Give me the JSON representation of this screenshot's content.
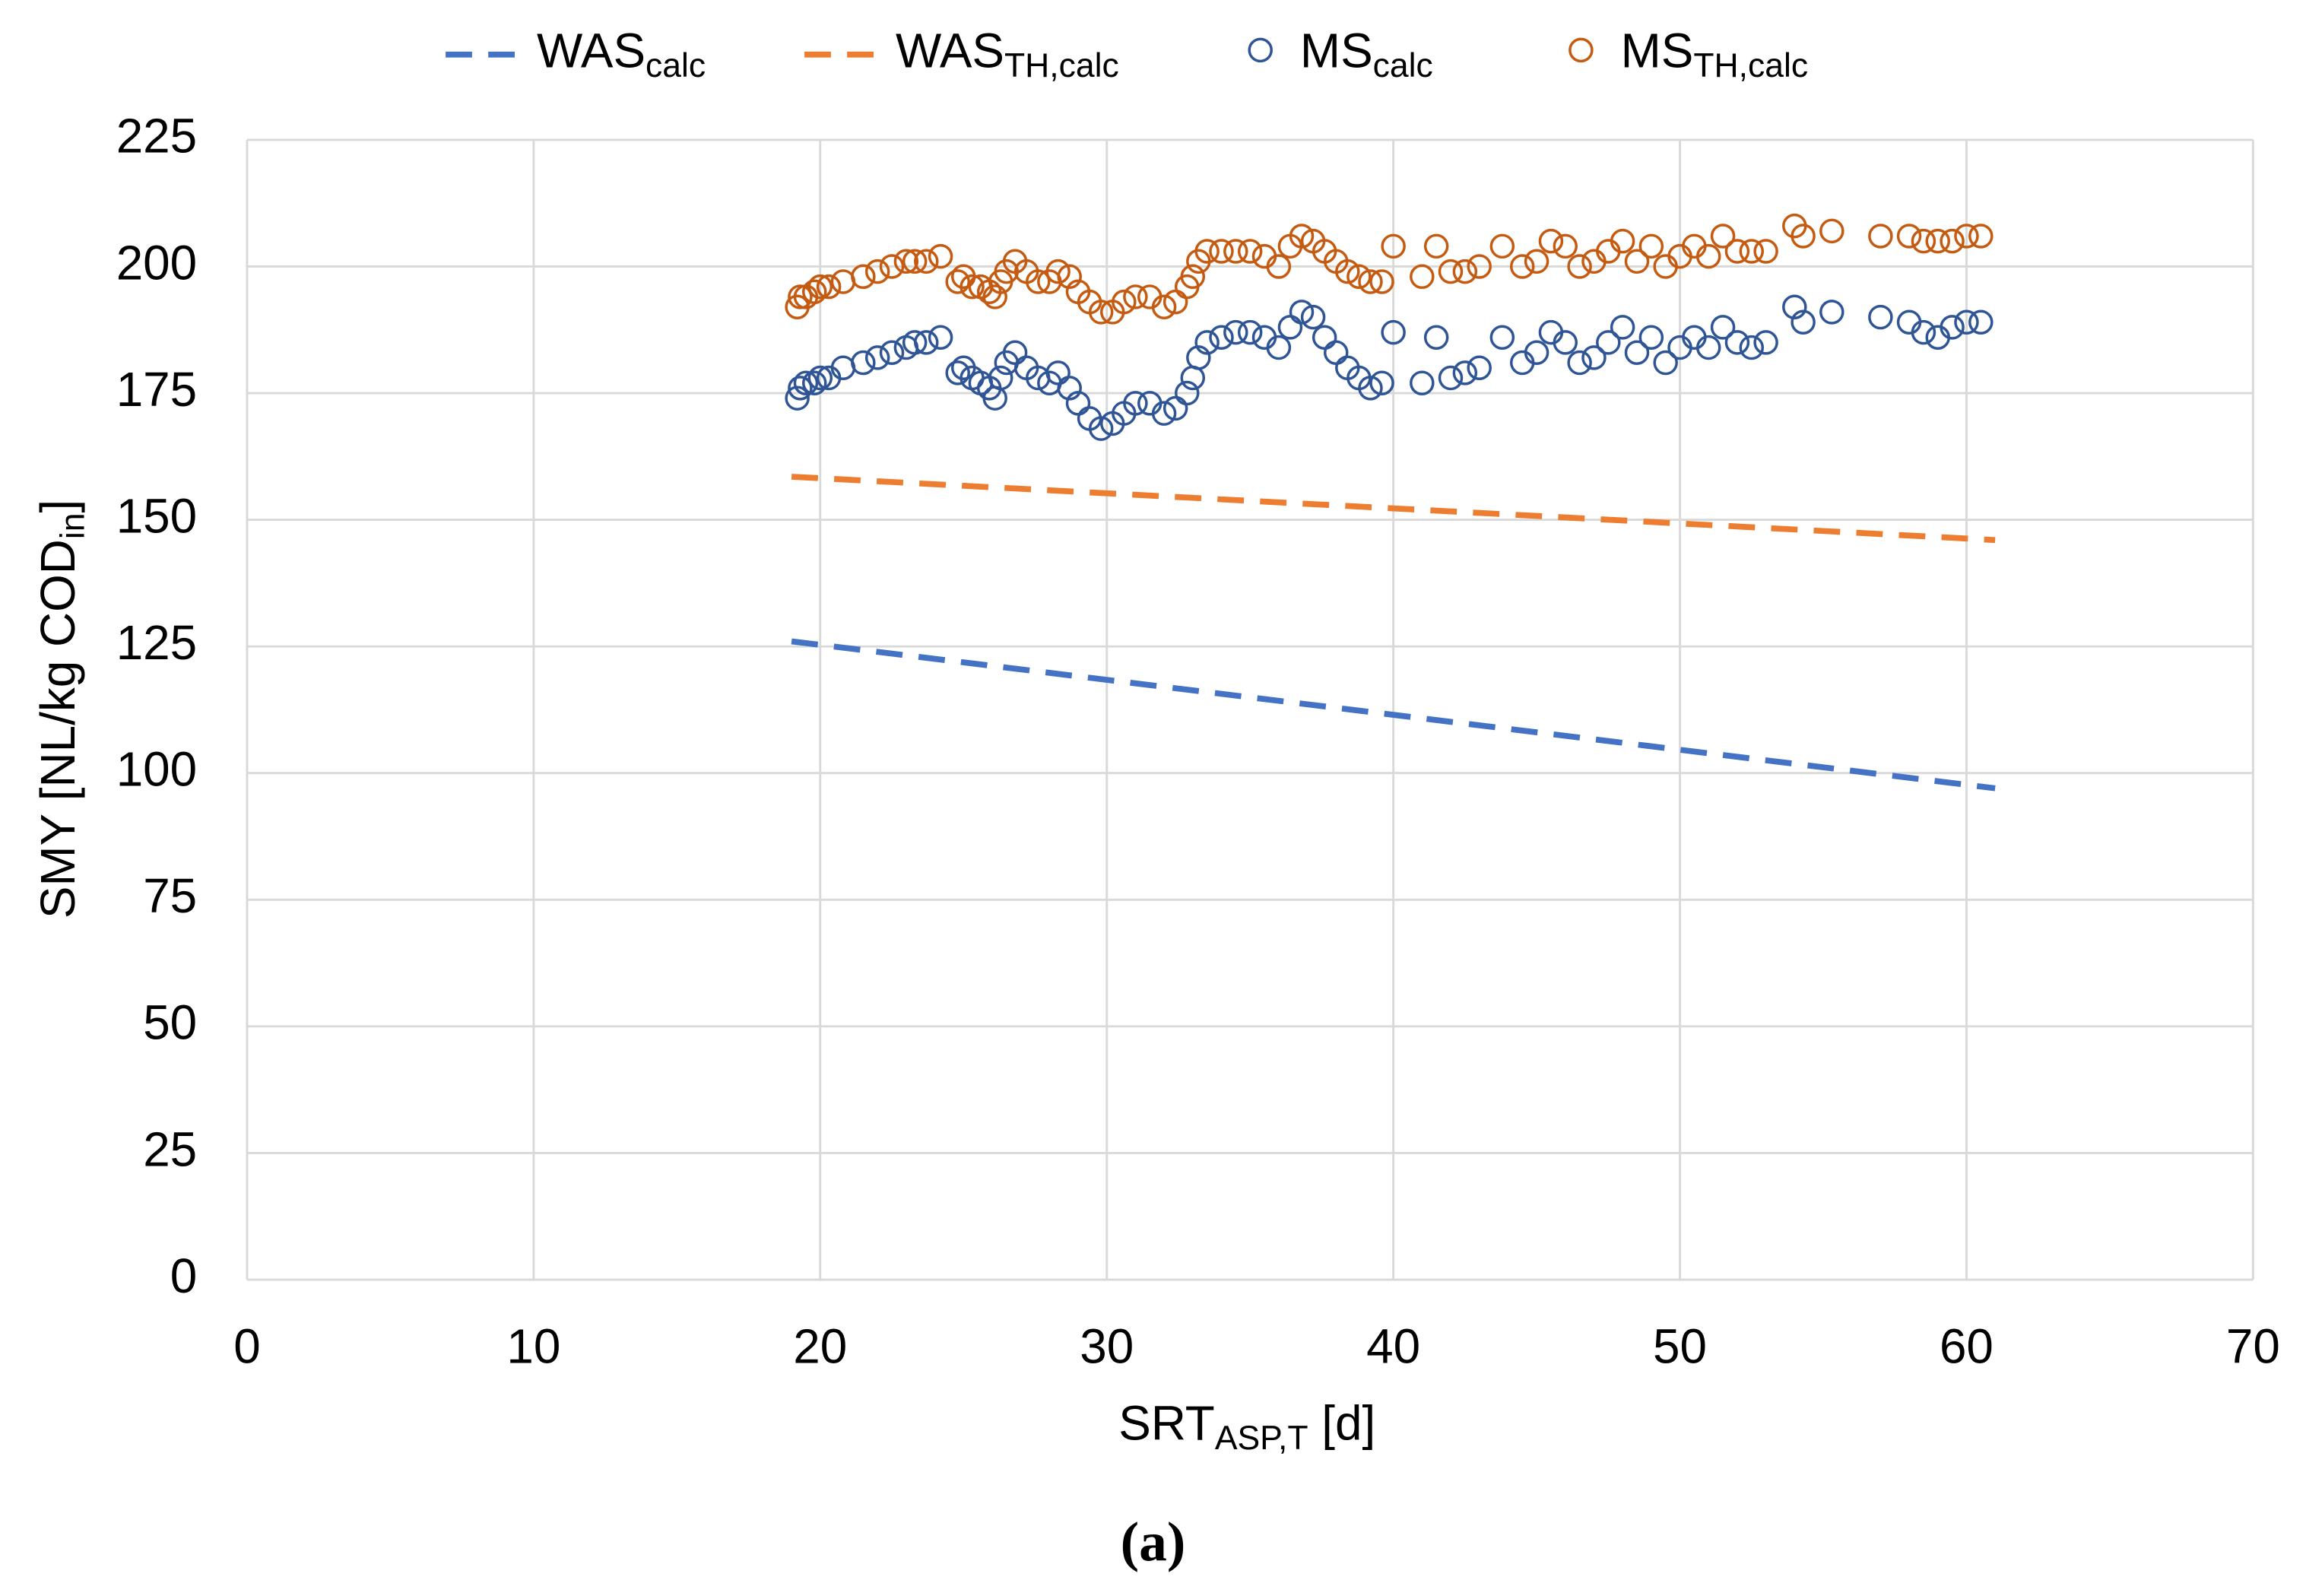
{
  "chart_data": {
    "type": "scatter",
    "x_label": "SRT",
    "x_label_sub": "ASP,T",
    "x_label_suffix": " [d]",
    "y_label": "SMY [NL/kg COD",
    "y_label_sub": "in",
    "y_label_suffix": "]",
    "caption": "(a)",
    "xlim": [
      0,
      70
    ],
    "xticks": [
      0,
      10,
      20,
      30,
      40,
      50,
      60,
      70
    ],
    "ylim": [
      0,
      225
    ],
    "yticks": [
      0,
      25,
      50,
      75,
      100,
      125,
      150,
      175,
      200,
      225
    ],
    "grid": true,
    "legend": "top",
    "series": [
      {
        "name": "WAS",
        "subscript": "calc",
        "style": "dashed-line",
        "color": "#4472c4",
        "x": [
          19,
          61
        ],
        "values": [
          126,
          97
        ]
      },
      {
        "name": "WAS",
        "subscript": "TH,calc",
        "style": "dashed-line",
        "color": "#ed7d31",
        "x": [
          19,
          61
        ],
        "values": [
          158.5,
          146
        ]
      },
      {
        "name": "MS",
        "subscript": "calc",
        "style": "open-circle",
        "color": "#2f5597",
        "x": [
          19.2,
          19.3,
          19.5,
          19.8,
          20.0,
          20.3,
          20.8,
          21.5,
          22,
          22.5,
          23,
          23.3,
          23.7,
          24.2,
          24.8,
          25.0,
          25.3,
          25.6,
          25.9,
          26.1,
          26.3,
          26.5,
          26.8,
          27.2,
          27.6,
          28.0,
          28.3,
          28.7,
          29.0,
          29.4,
          29.8,
          30.2,
          30.6,
          31.0,
          31.5,
          32.0,
          32.4,
          32.8,
          33.0,
          33.2,
          33.5,
          34.0,
          34.5,
          35.0,
          35.5,
          36.0,
          36.4,
          36.8,
          37.2,
          37.6,
          38.0,
          38.4,
          38.8,
          39.2,
          39.6,
          40.0,
          41.0,
          41.5,
          42,
          42.5,
          43,
          43.8,
          44.5,
          45.0,
          45.5,
          46.0,
          46.5,
          47.0,
          47.5,
          48.0,
          48.5,
          49.0,
          49.5,
          50.0,
          50.5,
          51.0,
          51.5,
          52.0,
          52.5,
          53.0,
          54.0,
          54.3,
          55.3,
          57.0,
          58.0,
          58.5,
          59.0,
          59.5,
          60.0,
          60.5
        ],
        "values": [
          174,
          176,
          177,
          177,
          178,
          178,
          180,
          181,
          182,
          183,
          184,
          185,
          185,
          186,
          179,
          180,
          178,
          177,
          176,
          174,
          178,
          181,
          183,
          180,
          178,
          177,
          179,
          176,
          173,
          170,
          168,
          169,
          171,
          173,
          173,
          171,
          172,
          175,
          178,
          182,
          185,
          186,
          187,
          187,
          186,
          184,
          188,
          191,
          190,
          186,
          183,
          180,
          178,
          176,
          177,
          187,
          177,
          186,
          178,
          179,
          180,
          186,
          181,
          183,
          187,
          185,
          181,
          182,
          185,
          188,
          183,
          186,
          181,
          184,
          186,
          184,
          188,
          185,
          184,
          185,
          192,
          189,
          191,
          190,
          189,
          187,
          186,
          188,
          189,
          189
        ]
      },
      {
        "name": "MS",
        "subscript": "TH,calc",
        "style": "open-circle",
        "color": "#c55a11",
        "x": [
          19.2,
          19.3,
          19.5,
          19.8,
          20.0,
          20.3,
          20.8,
          21.5,
          22,
          22.5,
          23,
          23.3,
          23.7,
          24.2,
          24.8,
          25.0,
          25.3,
          25.6,
          25.9,
          26.1,
          26.3,
          26.5,
          26.8,
          27.2,
          27.6,
          28.0,
          28.3,
          28.7,
          29.0,
          29.4,
          29.8,
          30.2,
          30.6,
          31.0,
          31.5,
          32.0,
          32.4,
          32.8,
          33.0,
          33.2,
          33.5,
          34.0,
          34.5,
          35.0,
          35.5,
          36.0,
          36.4,
          36.8,
          37.2,
          37.6,
          38.0,
          38.4,
          38.8,
          39.2,
          39.6,
          40.0,
          41.0,
          41.5,
          42,
          42.5,
          43,
          43.8,
          44.5,
          45.0,
          45.5,
          46.0,
          46.5,
          47.0,
          47.5,
          48.0,
          48.5,
          49.0,
          49.5,
          50.0,
          50.5,
          51.0,
          51.5,
          52.0,
          52.5,
          53.0,
          54.0,
          54.3,
          55.3,
          57.0,
          58.0,
          58.5,
          59.0,
          59.5,
          60.0,
          60.5
        ],
        "values": [
          192,
          194,
          194,
          195,
          196,
          196,
          197,
          198,
          199,
          200,
          201,
          201,
          201,
          202,
          197,
          198,
          196,
          196,
          195,
          194,
          197,
          199,
          201,
          199,
          197,
          197,
          199,
          198,
          195,
          193,
          191,
          191,
          193,
          194,
          194,
          192,
          193,
          196,
          198,
          201,
          203,
          203,
          203,
          203,
          202,
          200,
          204,
          206,
          205,
          203,
          201,
          199,
          198,
          197,
          197,
          204,
          198,
          204,
          199,
          199,
          200,
          204,
          200,
          201,
          205,
          204,
          200,
          201,
          203,
          205,
          201,
          204,
          200,
          202,
          204,
          202,
          206,
          203,
          203,
          203,
          208,
          206,
          207,
          206,
          206,
          205,
          205,
          205,
          206,
          206
        ]
      }
    ]
  }
}
